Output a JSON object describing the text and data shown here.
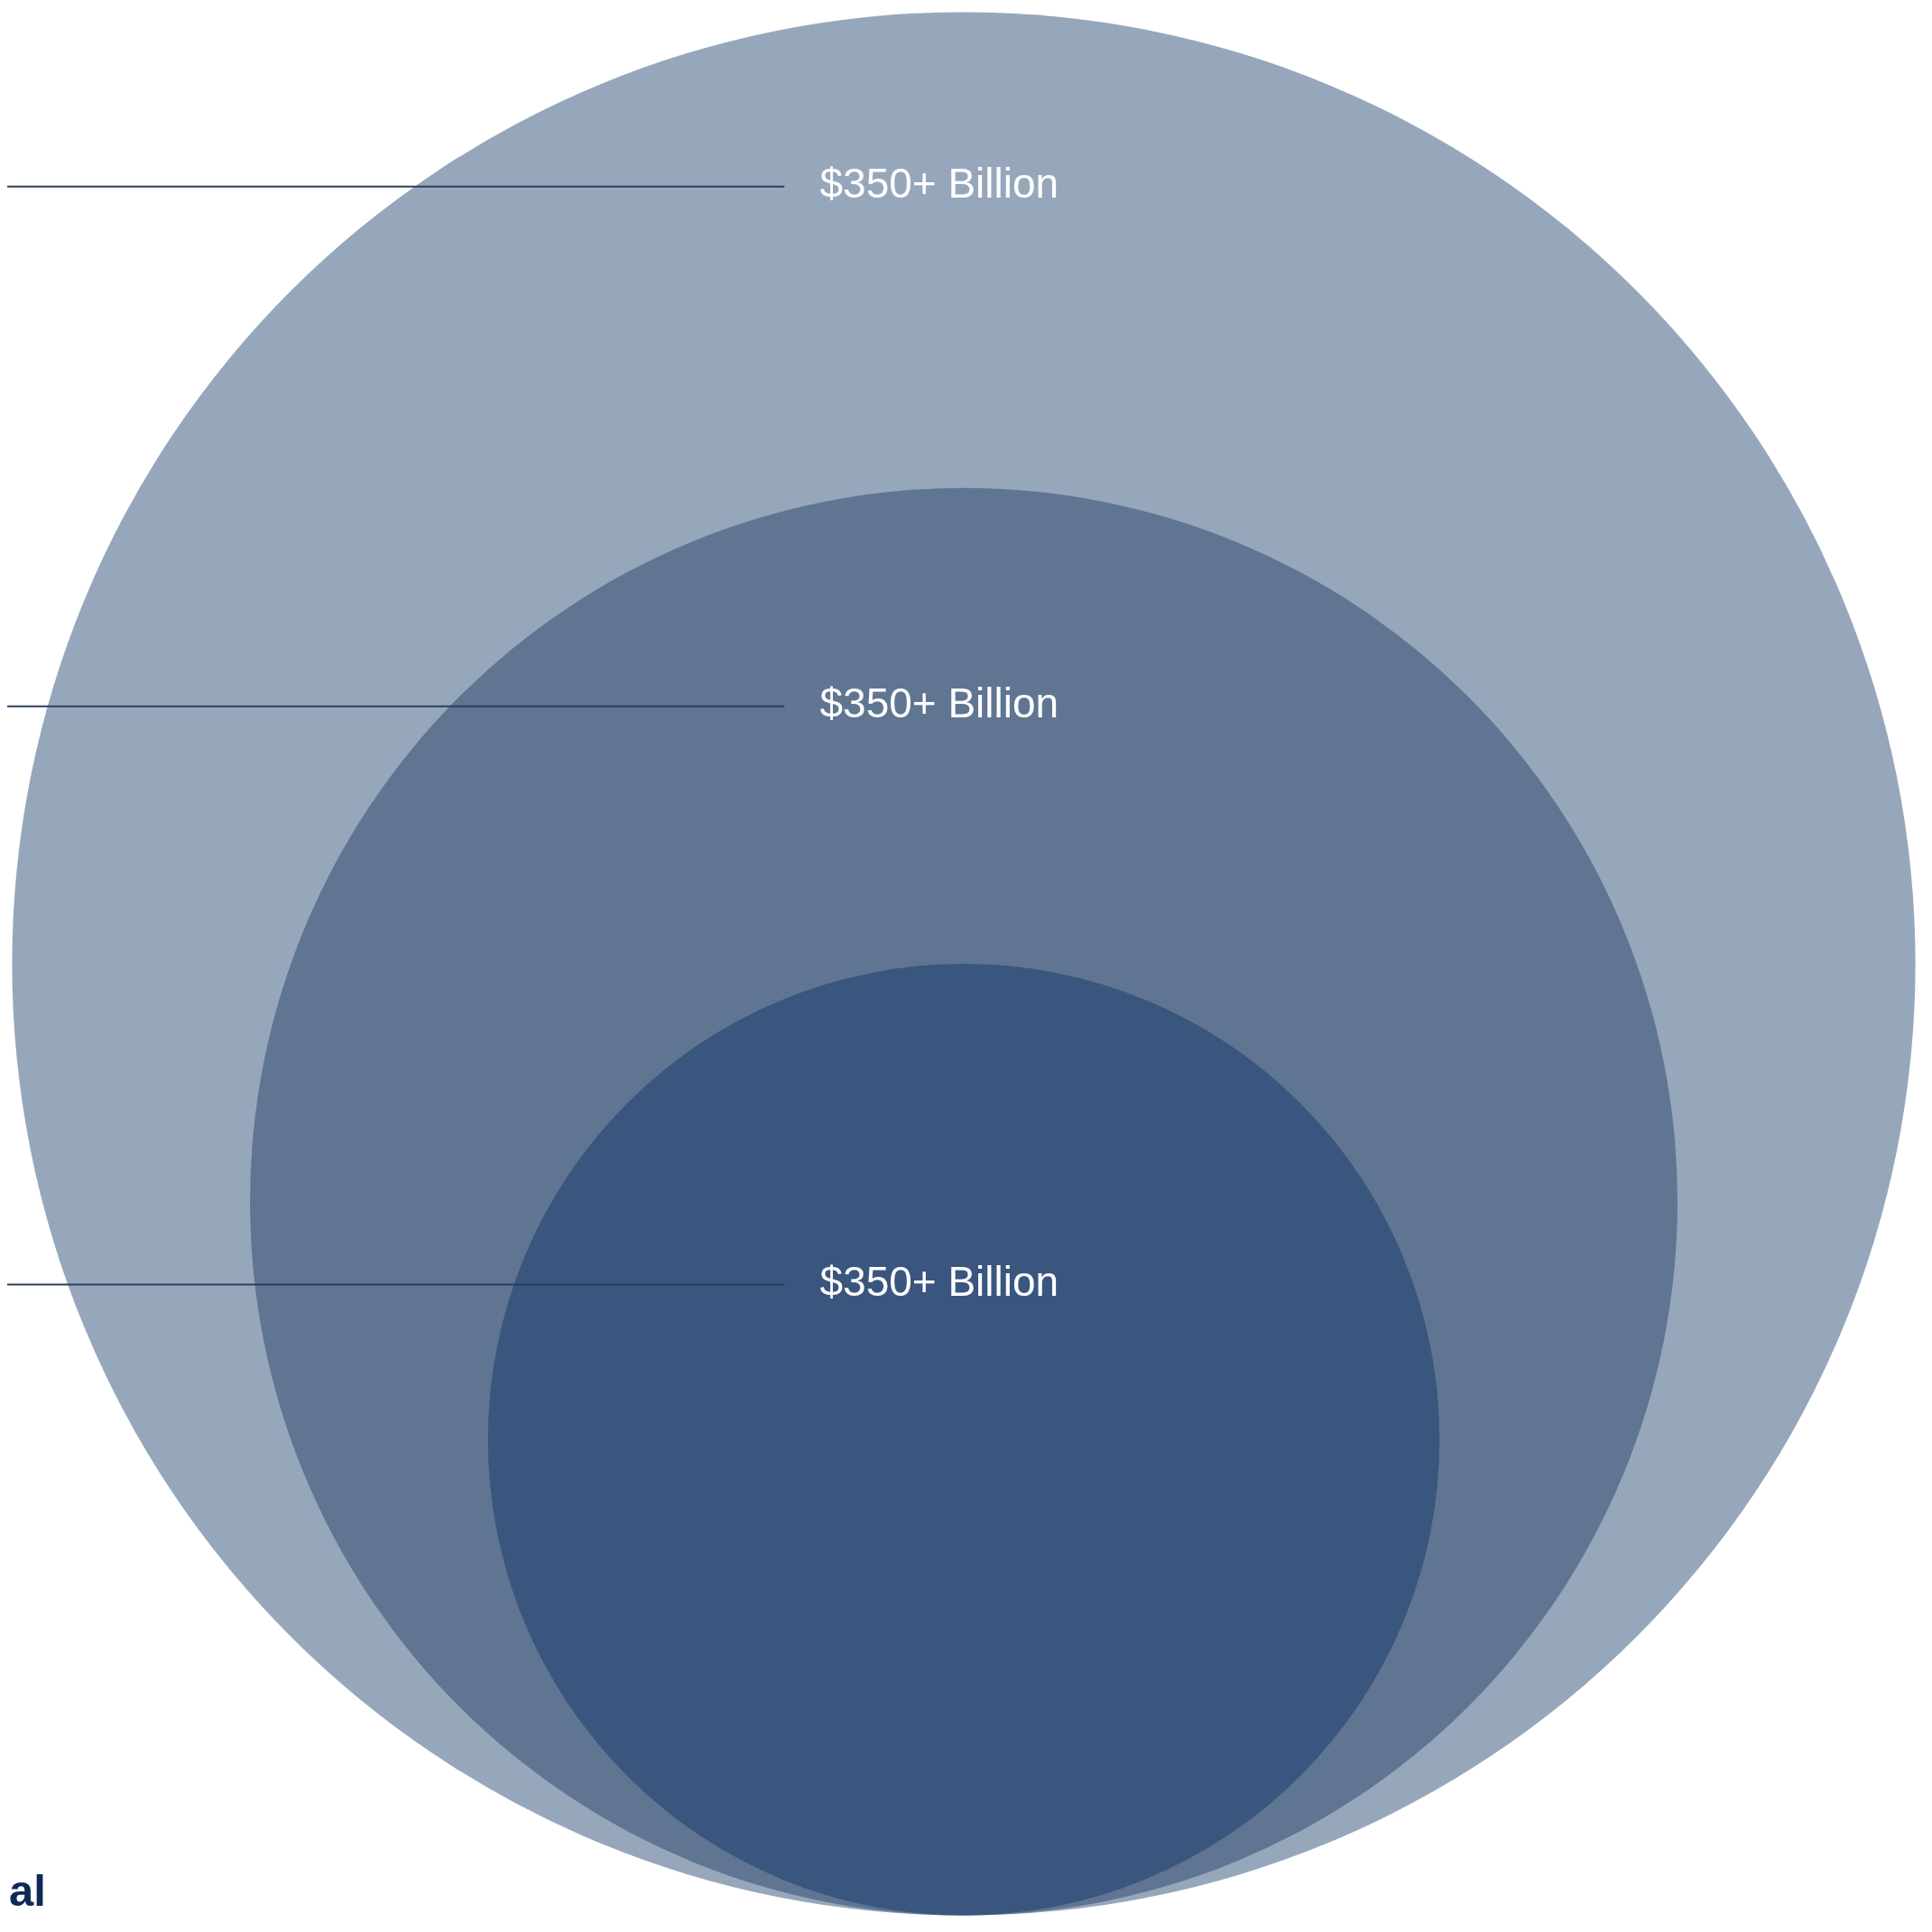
{
  "chart_data": {
    "type": "other",
    "categories": [
      null,
      null,
      null
    ],
    "values": [
      350,
      350,
      350
    ],
    "value_labels": [
      "$350+ Billion",
      "$350+ Billion",
      "$350+ Billion"
    ],
    "colors": [
      "#97a7bb",
      "#607592",
      "#3a567e"
    ],
    "annotations": [
      "al"
    ]
  }
}
